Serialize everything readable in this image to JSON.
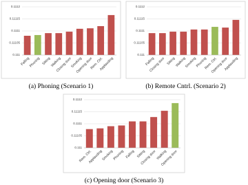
{
  "chart_data": [
    {
      "type": "bar",
      "caption": "(a) Phoning (Scenario 1)",
      "categories": [
        "Falling",
        "Phoning",
        "Sitting",
        "Walking",
        "Closing door",
        "Smoking",
        "Opening door",
        "Rem. Ctrl.",
        "Applauding"
      ],
      "values": [
        0.11108,
        0.111083,
        0.111091,
        0.111091,
        0.111097,
        0.111109,
        0.111111,
        0.11112,
        0.111166
      ],
      "colors": [
        "#c0504d",
        "#9bbb59",
        "#c0504d",
        "#c0504d",
        "#c0504d",
        "#c0504d",
        "#c0504d",
        "#c0504d",
        "#c0504d"
      ],
      "ylim": [
        0.111,
        0.1112
      ],
      "yticks": [
        0.111,
        0.11105,
        0.1111,
        0.11115,
        0.1112
      ],
      "grid": true
    },
    {
      "type": "bar",
      "caption": "(b) Remote Cntrl. (Scenario 2)",
      "categories": [
        "Falling",
        "Closing door",
        "Sitting",
        "Walking",
        "Smoking",
        "Phoning",
        "Rem. Ctrl.",
        "Opening door",
        "Applauding"
      ],
      "values": [
        0.111091,
        0.111091,
        0.111097,
        0.111097,
        0.111106,
        0.111106,
        0.111117,
        0.111114,
        0.111146
      ],
      "colors": [
        "#c0504d",
        "#c0504d",
        "#c0504d",
        "#c0504d",
        "#c0504d",
        "#c0504d",
        "#9bbb59",
        "#c0504d",
        "#c0504d"
      ],
      "ylim": [
        0.111,
        0.1112
      ],
      "yticks": [
        0.111,
        0.11105,
        0.1111,
        0.11115,
        0.1112
      ],
      "grid": true
    },
    {
      "type": "bar",
      "caption": "(c) Opening door (Scenario 3)",
      "categories": [
        "Rem. Ctrl.",
        "Applauding",
        "Smoking",
        "Phoning",
        "Falling",
        "Sitting",
        "Closing door",
        "Walking",
        "Opening door"
      ],
      "values": [
        0.111078,
        0.111081,
        0.11109,
        0.111093,
        0.11111,
        0.11111,
        0.111128,
        0.111154,
        0.111186
      ],
      "colors": [
        "#c0504d",
        "#c0504d",
        "#c0504d",
        "#c0504d",
        "#c0504d",
        "#c0504d",
        "#c0504d",
        "#c0504d",
        "#9bbb59"
      ],
      "ylim": [
        0.111,
        0.1112
      ],
      "yticks": [
        0.111,
        0.11105,
        0.1111,
        0.11115,
        0.1112
      ],
      "grid": true
    }
  ]
}
